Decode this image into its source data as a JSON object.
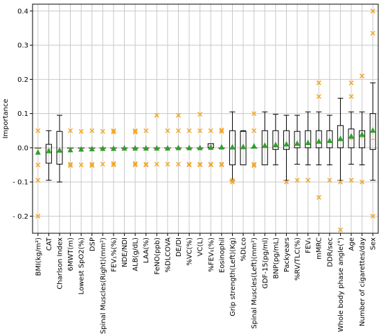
{
  "chart_data": {
    "type": "boxplot",
    "ylabel": "Importance",
    "ylim": [
      -0.25,
      0.42
    ],
    "y_ticks": [
      -0.2,
      -0.1,
      0.0,
      0.1,
      0.2,
      0.3,
      0.4
    ],
    "y_tick_labels": [
      "- 0.2",
      "- 0.1",
      "0.0",
      "0.1",
      "0.2",
      "0.3",
      "0.4"
    ],
    "grid": true,
    "colors": {
      "box": "#000000",
      "mean_marker": "#2ca02c",
      "outlier": "#f5a623",
      "grid": "#c8c8c8"
    },
    "categories": [
      "BMI(kg/m²)",
      "CAT",
      "Charlson Index",
      "6MWT(m)",
      "Lowest SpO2(%)",
      "DSP",
      "Spinal Muscles(Right)(mm²)",
      "FEV₁%(%)",
      "NDE/NDI",
      "ALB(g/dL)",
      "LAA(%)",
      "FeNO(ppb)",
      "%DLCOVA",
      "DE/DI",
      "%VC(%)",
      "VC(L)",
      "%FEV₁(%)",
      "Eosinophil",
      "Grip strength(Left)(Kg)",
      "%DLco",
      "Spinal Muscles(Left)(mm²)",
      "GDF-15(pg/ml)",
      "BNP(pg/mL)",
      "Packyears",
      "%RV/TLC(%)",
      "FEV₁",
      "mMRC",
      "DDR/sec",
      "Whole body phase angle(°)",
      "Age",
      "Number of cigarettes/day",
      "Sex"
    ],
    "series": [
      {
        "q1": 0,
        "median": 0,
        "q3": 0,
        "whisker_low": 0,
        "whisker_high": 0,
        "mean": -0.012,
        "outliers": [
          0.05,
          -0.05,
          -0.095,
          -0.2
        ]
      },
      {
        "q1": -0.045,
        "median": -0.005,
        "q3": 0.01,
        "whisker_low": -0.095,
        "whisker_high": 0.05,
        "mean": -0.008,
        "outliers": []
      },
      {
        "q1": -0.048,
        "median": -0.005,
        "q3": 0.048,
        "whisker_low": -0.1,
        "whisker_high": 0.095,
        "mean": -0.006,
        "outliers": []
      },
      {
        "q1": 0,
        "median": 0,
        "q3": 0,
        "whisker_low": 0,
        "whisker_high": 0,
        "mean": -0.005,
        "outliers": [
          0.05,
          -0.048,
          -0.052
        ]
      },
      {
        "q1": 0,
        "median": 0,
        "q3": 0,
        "whisker_low": 0,
        "whisker_high": 0,
        "mean": -0.003,
        "outliers": [
          0.048,
          -0.05
        ]
      },
      {
        "q1": 0,
        "median": 0,
        "q3": 0,
        "whisker_low": 0,
        "whisker_high": 0,
        "mean": -0.002,
        "outliers": [
          0.05,
          -0.048,
          -0.052
        ]
      },
      {
        "q1": 0,
        "median": 0,
        "q3": 0,
        "whisker_low": 0,
        "whisker_high": 0,
        "mean": -0.001,
        "outliers": [
          0.048,
          -0.048
        ]
      },
      {
        "q1": 0,
        "median": 0,
        "q3": 0,
        "whisker_low": 0,
        "whisker_high": 0,
        "mean": -0.001,
        "outliers": [
          0.05,
          0.046,
          -0.046,
          -0.05
        ]
      },
      {
        "q1": 0,
        "median": 0,
        "q3": 0,
        "whisker_low": 0,
        "whisker_high": 0,
        "mean": 0.0,
        "outliers": []
      },
      {
        "q1": 0,
        "median": 0,
        "q3": 0,
        "whisker_low": 0,
        "whisker_high": 0,
        "mean": 0.0,
        "outliers": [
          0.05,
          0.046,
          -0.046,
          -0.05
        ]
      },
      {
        "q1": 0,
        "median": 0,
        "q3": 0,
        "whisker_low": 0,
        "whisker_high": 0,
        "mean": 0.0,
        "outliers": [
          0.05,
          -0.048,
          -0.05
        ]
      },
      {
        "q1": 0,
        "median": 0,
        "q3": 0,
        "whisker_low": 0,
        "whisker_high": 0,
        "mean": 0.0,
        "outliers": [
          0.095,
          -0.048
        ]
      },
      {
        "q1": 0,
        "median": 0,
        "q3": 0,
        "whisker_low": 0,
        "whisker_high": 0,
        "mean": 0.0,
        "outliers": [
          0.05,
          -0.048
        ]
      },
      {
        "q1": 0,
        "median": 0,
        "q3": 0,
        "whisker_low": 0,
        "whisker_high": 0,
        "mean": 0.001,
        "outliers": [
          0.095,
          0.05,
          -0.048
        ]
      },
      {
        "q1": 0,
        "median": 0,
        "q3": 0,
        "whisker_low": 0,
        "whisker_high": 0,
        "mean": 0.001,
        "outliers": [
          0.05,
          -0.048,
          -0.05
        ]
      },
      {
        "q1": 0,
        "median": 0,
        "q3": 0,
        "whisker_low": 0,
        "whisker_high": 0,
        "mean": 0.001,
        "outliers": [
          0.098,
          0.05,
          -0.048,
          -0.05
        ]
      },
      {
        "q1": 0.0,
        "median": 0.006,
        "q3": 0.012,
        "whisker_low": 0.0,
        "whisker_high": 0.012,
        "mean": 0.002,
        "outliers": [
          0.05,
          -0.048,
          -0.05
        ]
      },
      {
        "q1": 0,
        "median": 0,
        "q3": 0,
        "whisker_low": 0,
        "whisker_high": 0,
        "mean": 0.003,
        "outliers": [
          0.052,
          0.048,
          -0.048,
          -0.05
        ]
      },
      {
        "q1": -0.05,
        "median": 0.0,
        "q3": 0.05,
        "whisker_low": -0.095,
        "whisker_high": 0.105,
        "mean": 0.003,
        "outliers": [
          -0.095,
          -0.1
        ]
      },
      {
        "q1": -0.05,
        "median": 0.0,
        "q3": 0.048,
        "whisker_low": -0.05,
        "whisker_high": 0.05,
        "mean": 0.004,
        "outliers": []
      },
      {
        "q1": 0,
        "median": 0,
        "q3": 0,
        "whisker_low": 0,
        "whisker_high": 0,
        "mean": 0.006,
        "outliers": [
          0.1,
          0.05,
          -0.048,
          -0.052
        ]
      },
      {
        "q1": -0.05,
        "median": 0.0,
        "q3": 0.05,
        "whisker_low": -0.05,
        "whisker_high": 0.105,
        "mean": 0.008,
        "outliers": []
      },
      {
        "q1": -0.005,
        "median": 0.005,
        "q3": 0.05,
        "whisker_low": -0.05,
        "whisker_high": 0.098,
        "mean": 0.01,
        "outliers": []
      },
      {
        "q1": -0.005,
        "median": 0.005,
        "q3": 0.05,
        "whisker_low": -0.095,
        "whisker_high": 0.095,
        "mean": 0.012,
        "outliers": [
          -0.1
        ]
      },
      {
        "q1": 0.0,
        "median": 0.01,
        "q3": 0.048,
        "whisker_low": -0.048,
        "whisker_high": 0.095,
        "mean": 0.014,
        "outliers": [
          -0.095
        ]
      },
      {
        "q1": 0.0,
        "median": 0.012,
        "q3": 0.05,
        "whisker_low": -0.05,
        "whisker_high": 0.105,
        "mean": 0.016,
        "outliers": [
          -0.095
        ]
      },
      {
        "q1": 0.0,
        "median": 0.015,
        "q3": 0.05,
        "whisker_low": -0.05,
        "whisker_high": 0.105,
        "mean": 0.02,
        "outliers": [
          0.19,
          0.15,
          -0.145
        ]
      },
      {
        "q1": 0.0,
        "median": 0.015,
        "q3": 0.05,
        "whisker_low": -0.05,
        "whisker_high": 0.095,
        "mean": 0.022,
        "outliers": [
          -0.095
        ]
      },
      {
        "q1": 0.0,
        "median": 0.02,
        "q3": 0.065,
        "whisker_low": -0.095,
        "whisker_high": 0.145,
        "mean": 0.028,
        "outliers": [
          -0.1,
          -0.24
        ]
      },
      {
        "q1": 0.0,
        "median": 0.025,
        "q3": 0.055,
        "whisker_low": -0.048,
        "whisker_high": 0.105,
        "mean": 0.035,
        "outliers": [
          0.19,
          0.15,
          -0.095
        ]
      },
      {
        "q1": 0.0,
        "median": 0.03,
        "q3": 0.05,
        "whisker_low": -0.05,
        "whisker_high": 0.105,
        "mean": 0.04,
        "outliers": [
          0.21,
          -0.1
        ]
      },
      {
        "q1": -0.005,
        "median": 0.025,
        "q3": 0.1,
        "whisker_low": -0.095,
        "whisker_high": 0.19,
        "mean": 0.052,
        "outliers": [
          0.4,
          0.335,
          -0.2
        ]
      }
    ]
  }
}
